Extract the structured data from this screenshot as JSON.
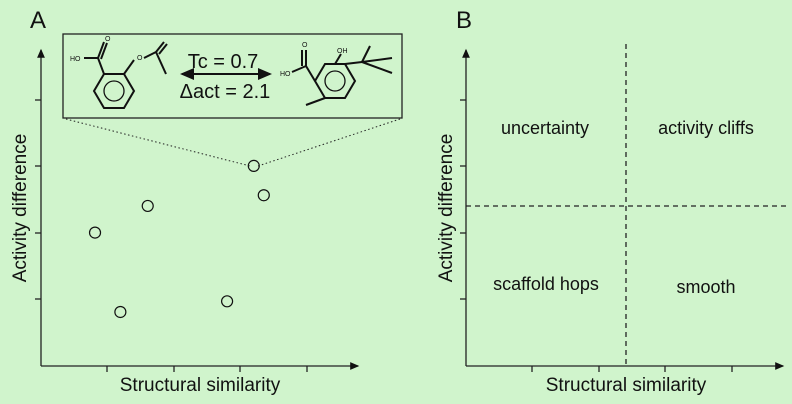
{
  "panels": {
    "a": {
      "label": "A",
      "xlabel": "Structural similarity",
      "ylabel": "Activity difference",
      "inset": {
        "tc_label": "Tc = 0.7",
        "dact_label": "Δact = 2.1",
        "molecule_left_atoms": [
          "HO",
          "O",
          "O"
        ],
        "molecule_right_atoms": [
          "HO",
          "O",
          "OH"
        ]
      }
    },
    "b": {
      "label": "B",
      "xlabel": "Structural similarity",
      "ylabel": "Activity difference",
      "quadrants": {
        "top_left": "uncertainty",
        "top_right": "activity cliffs",
        "bottom_left": "scaffold hops",
        "bottom_right": "smooth"
      }
    }
  },
  "chart_data": {
    "type": "scatter",
    "xlabel": "Structural similarity",
    "ylabel": "Activity difference",
    "xlim": [
      0,
      4.8
    ],
    "ylim": [
      0,
      4.7
    ],
    "grid": false,
    "points": [
      {
        "x": 0.81,
        "y": 2.0
      },
      {
        "x": 1.19,
        "y": 0.81
      },
      {
        "x": 1.6,
        "y": 2.4
      },
      {
        "x": 2.79,
        "y": 0.97
      },
      {
        "x": 3.19,
        "y": 3.0,
        "highlighted": true
      },
      {
        "x": 3.34,
        "y": 2.56
      }
    ]
  }
}
